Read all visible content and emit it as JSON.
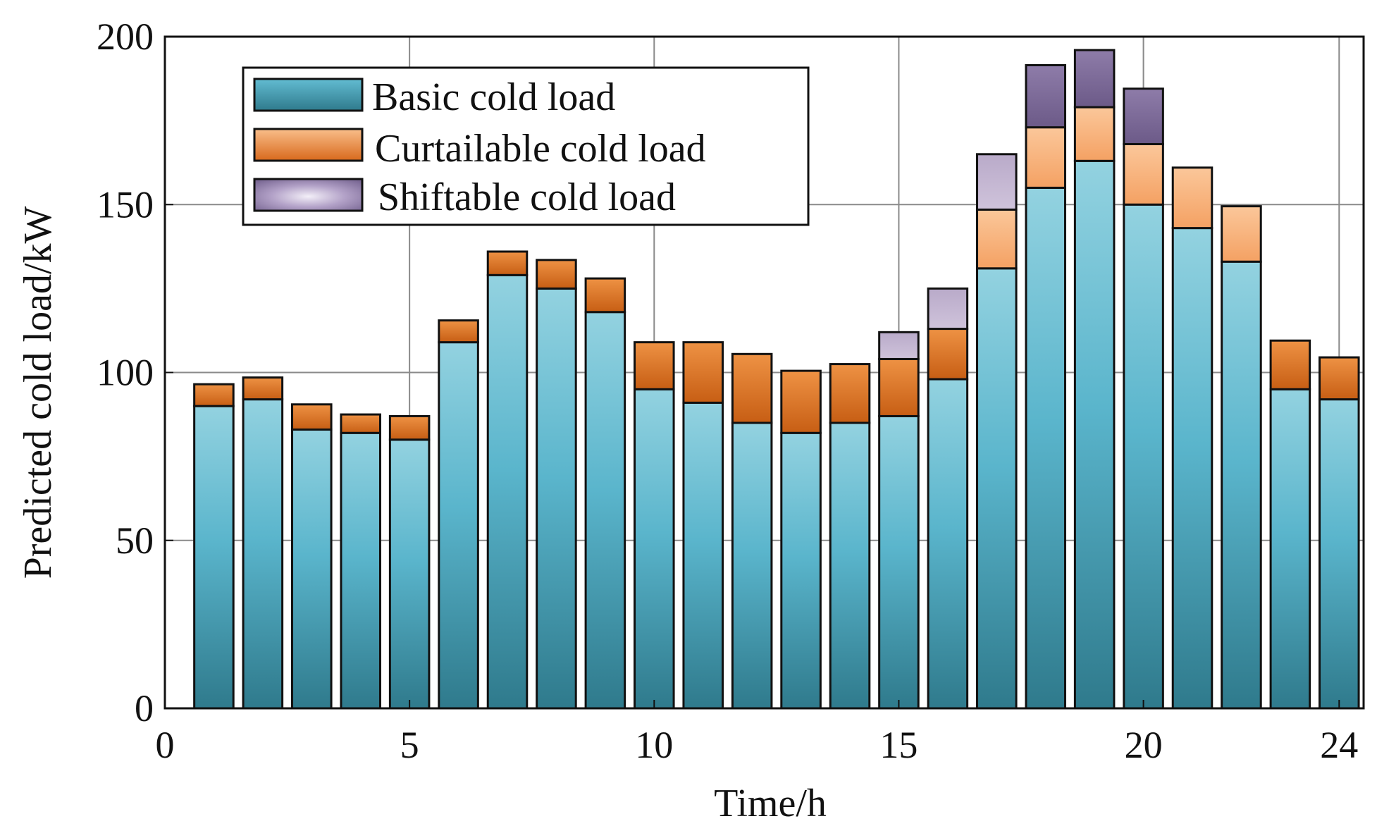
{
  "chart_data": {
    "type": "bar",
    "stacked": true,
    "title": "",
    "xlabel": "Time/h",
    "ylabel": "Predicted cold load/kW",
    "xlim": [
      0,
      24.5
    ],
    "ylim": [
      0,
      200
    ],
    "xticks": [
      0,
      5,
      10,
      15,
      20,
      24
    ],
    "yticks": [
      0,
      50,
      100,
      150,
      200
    ],
    "grid": true,
    "legend_position": "top-left",
    "x": [
      1,
      2,
      3,
      4,
      5,
      6,
      7,
      8,
      9,
      10,
      11,
      12,
      13,
      14,
      15,
      16,
      17,
      18,
      19,
      20,
      21,
      22,
      23,
      24
    ],
    "series": [
      {
        "name": "Basic cold load",
        "color": "#4ba8c2",
        "values": [
          90,
          92,
          83,
          82,
          80,
          109,
          129,
          125,
          118,
          95,
          91,
          85,
          82,
          85,
          87,
          98,
          131,
          155,
          163,
          150,
          143,
          133,
          95,
          92
        ]
      },
      {
        "name": "Curtailable cold load",
        "color": "#e07a2e",
        "values": [
          6.5,
          6.5,
          7.5,
          5.5,
          7,
          6.5,
          7,
          8.5,
          10,
          14,
          18,
          20.5,
          18.5,
          17.5,
          17,
          15,
          17.5,
          18,
          16,
          18,
          18,
          16.5,
          14.5,
          12.5
        ]
      },
      {
        "name": "Shiftable cold load",
        "color": "#7a6597",
        "values": [
          0,
          0,
          0,
          0,
          0,
          0,
          0,
          0,
          0,
          0,
          0,
          0,
          0,
          0,
          8,
          12,
          16.5,
          18.5,
          17,
          16.5,
          0,
          0,
          0,
          0
        ]
      }
    ]
  }
}
